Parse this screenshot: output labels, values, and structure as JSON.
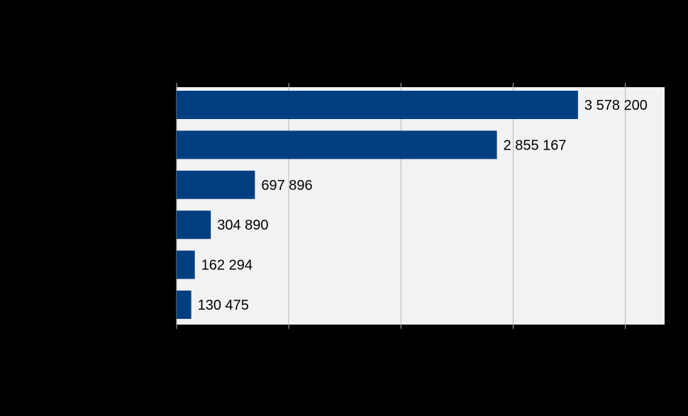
{
  "chart_data": {
    "type": "bar",
    "orientation": "horizontal",
    "title": "",
    "xlabel": "",
    "ylabel": "",
    "categories": [
      "",
      "",
      "",
      "",
      "",
      ""
    ],
    "values": [
      3578200,
      2855167,
      697896,
      304890,
      162294,
      130475
    ],
    "data_labels": [
      "3 578 200",
      "2 855 167",
      "697 896",
      "304 890",
      "162 294",
      "130 475"
    ],
    "xlim": [
      0,
      4350000
    ],
    "gridlines_at": [
      1000000,
      2000000,
      3000000,
      4000000
    ],
    "grid": true,
    "legend": "none",
    "colors": {
      "background": "#000000",
      "plot_area": "#f2f2f2",
      "bar": "#003f7f",
      "gridline": "#b5b5b5",
      "label_text": "#000000"
    }
  }
}
